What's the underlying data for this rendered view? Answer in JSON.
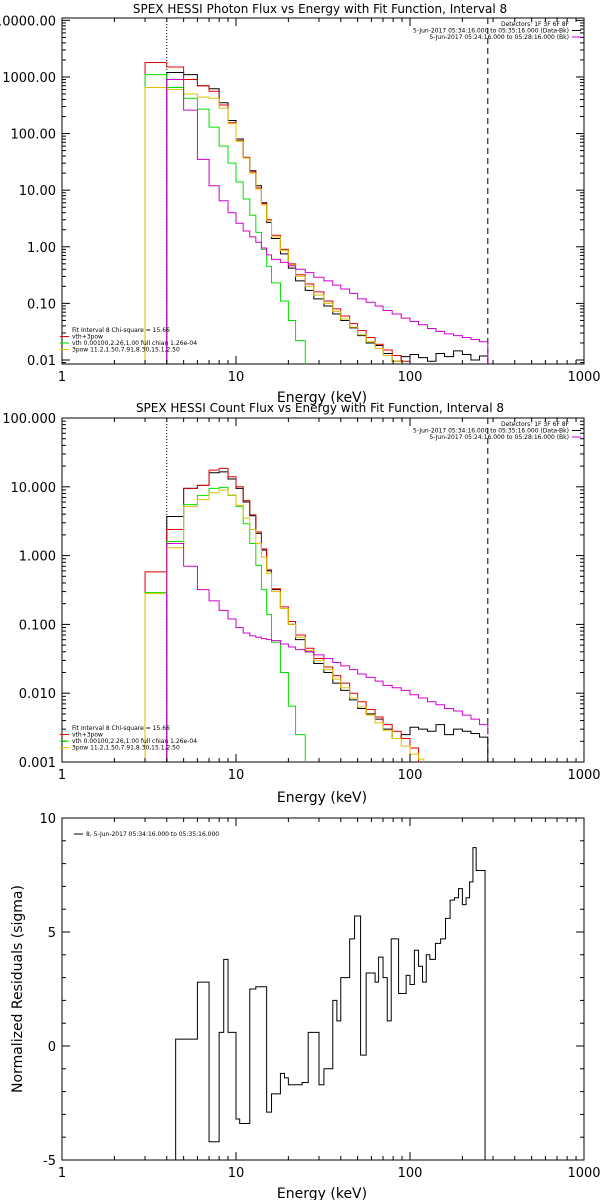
{
  "colors": {
    "data": "#000000",
    "total_fit": "#e00000",
    "vth": "#00e000",
    "power_law": "#e0c000",
    "background": "#d000d0",
    "frame": "#000000"
  },
  "chart_data": [
    {
      "type": "line",
      "title": "SPEX HESSI Photon Flux vs Energy with Fit Function, Interval 8",
      "xlabel": "Energy (keV)",
      "ylabel": "",
      "x_scale": "log",
      "y_scale": "log",
      "xlim": [
        1,
        1000
      ],
      "ylim": [
        0.0085,
        11000
      ],
      "x_ticks": [
        1,
        10,
        100,
        1000
      ],
      "x_tick_labels": [
        "1",
        "10",
        "100",
        "1000"
      ],
      "y_ticks": [
        0.01,
        0.1,
        1,
        10,
        100,
        1000,
        10000
      ],
      "y_tick_labels": [
        "0.01",
        "0.10",
        "1.00",
        "10.00",
        "100.00",
        "1000.00",
        "10000.00"
      ],
      "vlines": [
        {
          "x": 4,
          "style": "dotted"
        },
        {
          "x": 280,
          "style": "dashed"
        }
      ],
      "legend_top_right": [
        {
          "text": "Detectors: 1F 3F 6F 8F",
          "color": "#000000",
          "swatch": false
        },
        {
          "text": "5-Jun-2017 05:34:16.000 to 05:35:16.000 (Data-Bk)",
          "color": "#000000",
          "swatch": true
        },
        {
          "text": "5-Jun-2017 05:24:16.000 to 05:28:16.000 (Bk)",
          "color": "#d000d0",
          "swatch": true
        }
      ],
      "legend_bottom_left": [
        {
          "text": "Fit Interval 8   Chi-square = 15.66",
          "color": "#000000",
          "swatch": false
        },
        {
          "text": "vth+3pow",
          "color": "#e00000",
          "swatch": true
        },
        {
          "text": "vth 0.00100,2.26,1.00  full chian 1.26e-04",
          "color": "#00e000",
          "swatch": true
        },
        {
          "text": "3pow 11.2,1.50,7.91,8.30,15.1,2.50",
          "color": "#e0c000",
          "swatch": true
        }
      ],
      "series": [
        {
          "name": "Data-Bk",
          "color": "#000000",
          "x": [
            3,
            4,
            5,
            6,
            7,
            8,
            9,
            10,
            11,
            12,
            13,
            14,
            15,
            16,
            18,
            20,
            22,
            25,
            28,
            32,
            36,
            40,
            45,
            50,
            56,
            63,
            70,
            79,
            89,
            100,
            112,
            126,
            141,
            158,
            178,
            200,
            224,
            251,
            280
          ],
          "y": [
            0.0085,
            1200,
            1100,
            700,
            620,
            350,
            170,
            80,
            38,
            22,
            12,
            6,
            2.7,
            1.4,
            0.75,
            0.42,
            0.25,
            0.17,
            0.12,
            0.09,
            0.065,
            0.05,
            0.037,
            0.027,
            0.02,
            0.018,
            0.013,
            0.0095,
            0.0115,
            0.0125,
            0.011,
            0.0095,
            0.013,
            0.0115,
            0.0145,
            0.0125,
            0.01,
            0.0118,
            0.0085
          ]
        },
        {
          "name": "vth+3pow",
          "color": "#e00000",
          "x": [
            3,
            4,
            5,
            6,
            7,
            8,
            9,
            10,
            11,
            12,
            13,
            14,
            15,
            16,
            18,
            20,
            22,
            25,
            28,
            32,
            36,
            40,
            45,
            50,
            56,
            63,
            70,
            79,
            89,
            100
          ],
          "y": [
            1800,
            1500,
            900,
            700,
            560,
            320,
            155,
            75,
            38,
            21,
            11,
            5.8,
            3.0,
            1.6,
            0.9,
            0.5,
            0.32,
            0.22,
            0.16,
            0.11,
            0.08,
            0.06,
            0.044,
            0.033,
            0.025,
            0.019,
            0.015,
            0.012,
            0.0095,
            0.0085
          ]
        },
        {
          "name": "vth",
          "color": "#00e000",
          "x": [
            3,
            4,
            5,
            6,
            7,
            8,
            9,
            10,
            11,
            12,
            13,
            14,
            15,
            16,
            18,
            20,
            22,
            25
          ],
          "y": [
            1100,
            650,
            420,
            270,
            130,
            60,
            30,
            14,
            7,
            3.6,
            1.8,
            0.9,
            0.45,
            0.23,
            0.11,
            0.05,
            0.022,
            0.0085
          ]
        },
        {
          "name": "3pow",
          "color": "#e0c000",
          "x": [
            3,
            4,
            5,
            6,
            7,
            8,
            9,
            10,
            11,
            12,
            13,
            14,
            15,
            16,
            18,
            20,
            22,
            25,
            28,
            32,
            36,
            40,
            45,
            50,
            56,
            63,
            70,
            79,
            89
          ],
          "y": [
            650,
            600,
            500,
            440,
            420,
            280,
            150,
            73,
            37,
            20,
            10.5,
            5.5,
            2.9,
            1.5,
            0.85,
            0.48,
            0.3,
            0.2,
            0.14,
            0.1,
            0.072,
            0.053,
            0.038,
            0.028,
            0.021,
            0.016,
            0.012,
            0.0095,
            0.0085
          ]
        },
        {
          "name": "Bk",
          "color": "#d000d0",
          "x": [
            4,
            5,
            6,
            7,
            8,
            9,
            10,
            11,
            12,
            13,
            14,
            15,
            16,
            18,
            20,
            22,
            25,
            28,
            32,
            36,
            40,
            45,
            50,
            56,
            63,
            70,
            79,
            89,
            100,
            112,
            126,
            141,
            158,
            178,
            200,
            224,
            251,
            280
          ],
          "y": [
            900,
            260,
            35,
            12,
            6.5,
            4.0,
            2.6,
            1.9,
            1.5,
            1.2,
            0.95,
            0.72,
            0.6,
            0.53,
            0.46,
            0.4,
            0.35,
            0.29,
            0.25,
            0.21,
            0.18,
            0.15,
            0.12,
            0.105,
            0.09,
            0.075,
            0.065,
            0.055,
            0.048,
            0.042,
            0.036,
            0.032,
            0.029,
            0.027,
            0.025,
            0.023,
            0.021,
            0.0085
          ]
        }
      ]
    },
    {
      "type": "line",
      "title": "SPEX HESSI Count Flux vs Energy with Fit Function, Interval 8",
      "xlabel": "Energy (keV)",
      "ylabel": "",
      "x_scale": "log",
      "y_scale": "log",
      "xlim": [
        1,
        1000
      ],
      "ylim": [
        0.001,
        100
      ],
      "x_ticks": [
        1,
        10,
        100,
        1000
      ],
      "x_tick_labels": [
        "1",
        "10",
        "100",
        "1000"
      ],
      "y_ticks": [
        0.001,
        0.01,
        0.1,
        1,
        10,
        100
      ],
      "y_tick_labels": [
        "0.001",
        "0.010",
        "0.100",
        "1.000",
        "10.000",
        "100.000"
      ],
      "vlines": [
        {
          "x": 4,
          "style": "dotted"
        },
        {
          "x": 280,
          "style": "dashed"
        }
      ],
      "legend_top_right": [
        {
          "text": "Detectors: 1F 3F 6F 8F",
          "color": "#000000",
          "swatch": false
        },
        {
          "text": "5-Jun-2017 05:34:16.000 to 05:35:16.000 (Data-Bk)",
          "color": "#000000",
          "swatch": true
        },
        {
          "text": "5-Jun-2017 05:24:16.000 to 05:28:16.000 (Bk)",
          "color": "#d000d0",
          "swatch": true
        }
      ],
      "legend_bottom_left": [
        {
          "text": "Fit Interval 8   Chi-square = 15.66",
          "color": "#000000",
          "swatch": false
        },
        {
          "text": "vth+3pow",
          "color": "#e00000",
          "swatch": true
        },
        {
          "text": "vth 0.00100,2.26,1.00  full chian 1.26e-04",
          "color": "#00e000",
          "swatch": true
        },
        {
          "text": "3pow 11.2,1.50,7.91,8.30,15.1,2.50",
          "color": "#e0c000",
          "swatch": true
        }
      ],
      "series": [
        {
          "name": "Data-Bk",
          "color": "#000000",
          "x": [
            3,
            4,
            5,
            6,
            7,
            8,
            9,
            10,
            11,
            12,
            13,
            14,
            15,
            16,
            18,
            20,
            22,
            25,
            28,
            32,
            36,
            40,
            45,
            50,
            56,
            63,
            70,
            79,
            89,
            100,
            112,
            126,
            141,
            158,
            178,
            200,
            224,
            251,
            280
          ],
          "y": [
            0.001,
            3.7,
            9.5,
            10.5,
            16,
            16.5,
            13,
            9.5,
            6,
            3.8,
            2.1,
            1.2,
            0.6,
            0.32,
            0.17,
            0.1,
            0.06,
            0.04,
            0.027,
            0.02,
            0.014,
            0.011,
            0.008,
            0.006,
            0.005,
            0.0042,
            0.003,
            0.0022,
            0.0025,
            0.0032,
            0.003,
            0.0028,
            0.0035,
            0.0025,
            0.003,
            0.0028,
            0.0026,
            0.0023,
            0.001
          ]
        },
        {
          "name": "vth+3pow",
          "color": "#e00000",
          "x": [
            3,
            4,
            5,
            6,
            7,
            8,
            9,
            10,
            11,
            12,
            13,
            14,
            15,
            16,
            18,
            20,
            22,
            25,
            28,
            32,
            36,
            40,
            45,
            50,
            56,
            63,
            70,
            79,
            89,
            100,
            112
          ],
          "y": [
            0.58,
            2.4,
            9.5,
            10.5,
            17.5,
            18.5,
            14,
            10,
            6.3,
            3.9,
            2.2,
            1.25,
            0.62,
            0.33,
            0.18,
            0.11,
            0.07,
            0.045,
            0.032,
            0.024,
            0.018,
            0.014,
            0.01,
            0.0075,
            0.0058,
            0.0045,
            0.0035,
            0.0028,
            0.0022,
            0.0016,
            0.001
          ]
        },
        {
          "name": "vth",
          "color": "#00e000",
          "x": [
            3,
            4,
            5,
            6,
            7,
            8,
            9,
            10,
            11,
            12,
            13,
            14,
            15,
            16,
            18,
            20,
            22,
            25
          ],
          "y": [
            0.29,
            1.6,
            5.5,
            7.5,
            9.5,
            9.8,
            7.5,
            5.2,
            2.9,
            1.5,
            0.72,
            0.32,
            0.14,
            0.055,
            0.02,
            0.0065,
            0.0025,
            0.001
          ]
        },
        {
          "name": "3pow",
          "color": "#e0c000",
          "x": [
            3,
            4,
            5,
            6,
            7,
            8,
            9,
            10,
            11,
            12,
            13,
            14,
            15,
            16,
            18,
            20,
            22,
            25,
            28,
            32,
            36,
            40,
            45,
            50,
            56,
            63,
            70,
            79,
            89,
            100,
            112,
            120
          ],
          "y": [
            0.28,
            1.3,
            5.2,
            6.5,
            8.2,
            9.0,
            7.6,
            5.4,
            3.5,
            2.4,
            1.5,
            0.95,
            0.55,
            0.3,
            0.17,
            0.1,
            0.065,
            0.042,
            0.03,
            0.022,
            0.016,
            0.012,
            0.0085,
            0.0063,
            0.0048,
            0.0037,
            0.0029,
            0.0022,
            0.0017,
            0.0013,
            0.0011,
            0.001
          ]
        },
        {
          "name": "Bk",
          "color": "#d000d0",
          "x": [
            4,
            5,
            6,
            7,
            8,
            9,
            10,
            11,
            12,
            13,
            14,
            15,
            16,
            18,
            20,
            22,
            25,
            28,
            32,
            36,
            40,
            45,
            50,
            56,
            63,
            70,
            79,
            89,
            100,
            112,
            126,
            141,
            158,
            178,
            200,
            224,
            251,
            280
          ],
          "y": [
            1.5,
            0.7,
            0.32,
            0.22,
            0.16,
            0.12,
            0.09,
            0.075,
            0.068,
            0.065,
            0.062,
            0.06,
            0.058,
            0.052,
            0.047,
            0.043,
            0.04,
            0.036,
            0.032,
            0.028,
            0.025,
            0.022,
            0.019,
            0.017,
            0.015,
            0.013,
            0.012,
            0.011,
            0.0095,
            0.0085,
            0.0075,
            0.0068,
            0.006,
            0.0055,
            0.0048,
            0.0042,
            0.0035,
            0.0025
          ]
        }
      ]
    },
    {
      "type": "line",
      "title": "",
      "xlabel": "Energy (keV)",
      "ylabel": "Normalized Residuals (sigma)",
      "x_scale": "log",
      "y_scale": "linear",
      "xlim": [
        1,
        1000
      ],
      "ylim": [
        -5,
        10
      ],
      "x_ticks": [
        1,
        10,
        100,
        1000
      ],
      "x_tick_labels": [
        "1",
        "10",
        "100",
        "1000"
      ],
      "y_ticks": [
        -5,
        0,
        5,
        10
      ],
      "y_tick_labels": [
        "-5",
        "0",
        "5",
        "10"
      ],
      "legend_top_left": [
        {
          "text": "8,  5-Jun-2017 05:34:16.000 to 05:35:16.000",
          "color": "#000000",
          "swatch": true
        }
      ],
      "series": [
        {
          "name": "8,  5-Jun-2017 05:34:16.000 to 05:35:16.000",
          "color": "#000000",
          "x": [
            4,
            4.5,
            5,
            6,
            6.3,
            7,
            7.5,
            8,
            8.5,
            9,
            10,
            10.5,
            11,
            12,
            13,
            14,
            15,
            16,
            18,
            19,
            20,
            22,
            24,
            26,
            28,
            30,
            32,
            34,
            36,
            38,
            40,
            42,
            45,
            48,
            50,
            52,
            54,
            56,
            60,
            63,
            66,
            70,
            74,
            78,
            82,
            86,
            90,
            95,
            100,
            106,
            112,
            118,
            124,
            130,
            140,
            150,
            160,
            170,
            180,
            190,
            200,
            210,
            220,
            230,
            240,
            250,
            260,
            270,
            280
          ],
          "y": [
            -5,
            0.3,
            0.3,
            2.8,
            2.8,
            -4.2,
            -4.2,
            0.6,
            3.8,
            0.6,
            -3.2,
            -3.4,
            -3.4,
            2.5,
            2.6,
            2.6,
            -2.9,
            -2.1,
            -1.2,
            -1.4,
            -1.7,
            -1.7,
            -1.6,
            0.6,
            0.6,
            -1.7,
            -1.0,
            -1.0,
            2.0,
            1.1,
            3.0,
            3.0,
            4.7,
            5.7,
            5.7,
            -0.4,
            -0.4,
            3.2,
            3.2,
            2.8,
            3.9,
            3.0,
            1.1,
            4.7,
            4.7,
            2.3,
            2.3,
            3.1,
            2.7,
            4.2,
            3.5,
            2.8,
            4.0,
            3.8,
            4.5,
            4.7,
            5.6,
            6.4,
            6.5,
            6.9,
            6.2,
            6.5,
            7.2,
            8.7,
            7.7,
            7.7,
            7.7,
            -5,
            -5
          ]
        }
      ]
    }
  ]
}
